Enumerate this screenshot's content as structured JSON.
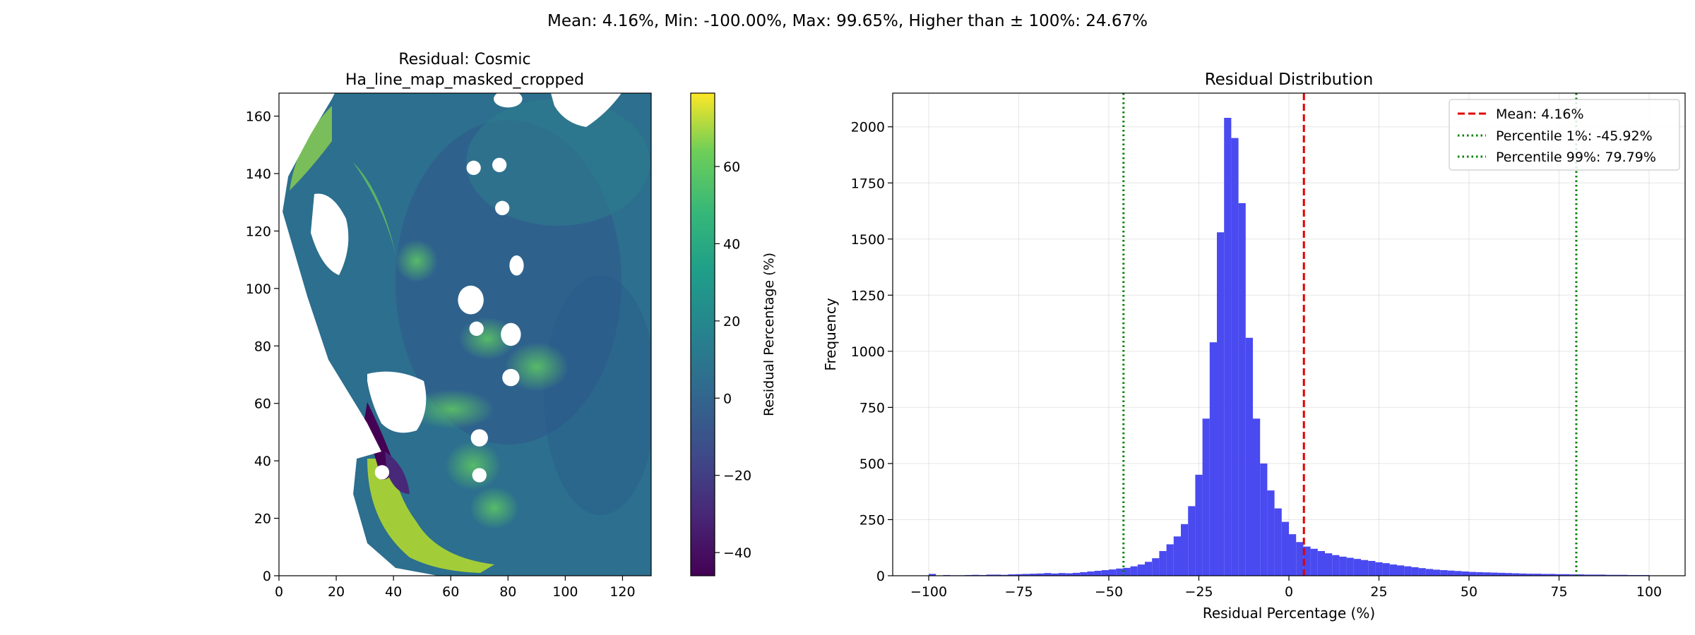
{
  "suptitle": "Mean: 4.16%, Min: -100.00%, Max: 99.65%, Higher than ± 100%: 24.67%",
  "chart_data": [
    {
      "type": "heatmap",
      "title_line1": "Residual: Cosmic",
      "title_line2": "Ha_line_map_masked_cropped",
      "xlim": [
        0,
        130
      ],
      "ylim": [
        0,
        168
      ],
      "x_ticks": [
        0,
        20,
        40,
        60,
        80,
        100,
        120
      ],
      "y_ticks": [
        0,
        20,
        40,
        60,
        80,
        100,
        120,
        140,
        160
      ],
      "colormap": "viridis",
      "colorbar": {
        "label": "Residual Percentage (%)",
        "range": [
          -46,
          79
        ],
        "ticks": [
          -40,
          -20,
          0,
          20,
          40,
          60
        ]
      },
      "mask_holes": [
        {
          "x": 68,
          "y": 142,
          "rx": 2.5,
          "ry": 2.5
        },
        {
          "x": 77,
          "y": 143,
          "rx": 2.5,
          "ry": 2.5
        },
        {
          "x": 78,
          "y": 128,
          "rx": 2.5,
          "ry": 2.5
        },
        {
          "x": 83,
          "y": 108,
          "rx": 2.5,
          "ry": 3.5
        },
        {
          "x": 67,
          "y": 96,
          "rx": 4.5,
          "ry": 5
        },
        {
          "x": 81,
          "y": 84,
          "rx": 3.5,
          "ry": 4
        },
        {
          "x": 69,
          "y": 86,
          "rx": 2.5,
          "ry": 2.5
        },
        {
          "x": 81,
          "y": 69,
          "rx": 3,
          "ry": 3
        },
        {
          "x": 70,
          "y": 48,
          "rx": 3,
          "ry": 3
        },
        {
          "x": 70,
          "y": 35,
          "rx": 2.5,
          "ry": 2.5
        },
        {
          "x": 36,
          "y": 36,
          "rx": 2.5,
          "ry": 2.5
        },
        {
          "x": 80,
          "y": 166,
          "rx": 5,
          "ry": 3
        }
      ]
    },
    {
      "type": "bar",
      "title": "Residual Distribution",
      "xlabel": "Residual Percentage (%)",
      "ylabel": "Frequency",
      "xlim": [
        -110,
        110
      ],
      "ylim": [
        0,
        2150
      ],
      "x_ticks": [
        -100,
        -75,
        -50,
        -25,
        0,
        25,
        50,
        75,
        100
      ],
      "y_ticks": [
        0,
        250,
        500,
        750,
        1000,
        1250,
        1500,
        1750,
        2000
      ],
      "grid": true,
      "bar_color": "#4040f0",
      "bin_start": -100,
      "bin_width": 2,
      "values": [
        8,
        0,
        3,
        2,
        2,
        3,
        4,
        3,
        5,
        5,
        4,
        6,
        7,
        8,
        9,
        10,
        12,
        10,
        12,
        11,
        13,
        16,
        19,
        22,
        25,
        28,
        32,
        35,
        42,
        50,
        62,
        78,
        110,
        140,
        175,
        230,
        310,
        450,
        700,
        1040,
        1530,
        2040,
        1950,
        1660,
        1060,
        700,
        500,
        380,
        300,
        240,
        185,
        150,
        130,
        120,
        110,
        100,
        92,
        85,
        80,
        75,
        70,
        66,
        60,
        56,
        50,
        46,
        42,
        38,
        34,
        30,
        27,
        25,
        23,
        21,
        19,
        17,
        16,
        15,
        14,
        13,
        12,
        11,
        10,
        9,
        9,
        8,
        8,
        7,
        7,
        6,
        6,
        5,
        5,
        5,
        4,
        4,
        4,
        3,
        3,
        3
      ],
      "vlines": [
        {
          "name": "Mean: 4.16%",
          "x": 4.16,
          "color": "#e00000",
          "style": "dashed"
        },
        {
          "name": "Percentile 1%: -45.92%",
          "x": -45.92,
          "color": "#008000",
          "style": "dotted"
        },
        {
          "name": "Percentile 99%: 79.79%",
          "x": 79.79,
          "color": "#008000",
          "style": "dotted"
        }
      ],
      "legend_position": "top-right"
    }
  ]
}
